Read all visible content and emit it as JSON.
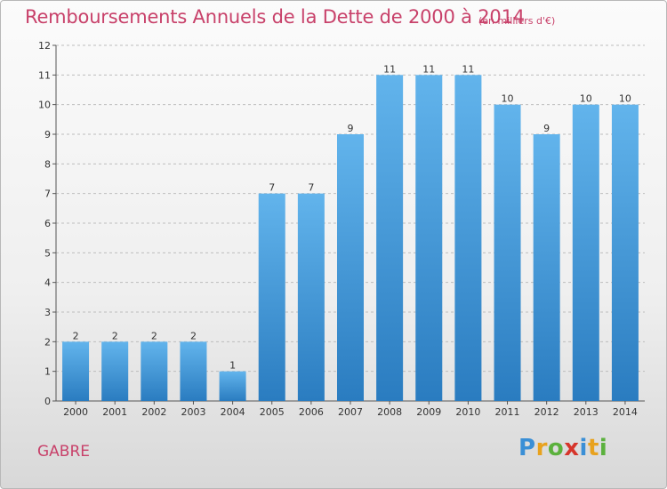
{
  "title": "Remboursements Annuels de la Dette de 2000 à 2014",
  "unit_note": "(en milliers d'€)",
  "commune": "GABRE",
  "logo": {
    "letters": [
      "P",
      "r",
      "o",
      "x",
      "i",
      "t",
      "i"
    ],
    "colors": [
      "#3a8fd6",
      "#e8a21e",
      "#5bb13d",
      "#d6352b",
      "#3a8fd6",
      "#e8a21e",
      "#5bb13d"
    ]
  },
  "colors": {
    "bar_light": "#62b4ec",
    "bar_dark": "#2a7cc0",
    "title": "#c8416a"
  },
  "chart_data": {
    "type": "bar",
    "categories": [
      "2000",
      "2001",
      "2002",
      "2003",
      "2004",
      "2005",
      "2006",
      "2007",
      "2008",
      "2009",
      "2010",
      "2011",
      "2012",
      "2013",
      "2014"
    ],
    "values": [
      2,
      2,
      2,
      2,
      1,
      7,
      7,
      9,
      11,
      11,
      11,
      10,
      9,
      10,
      10
    ],
    "ylim": [
      0,
      12
    ],
    "yticks": [
      0,
      1,
      2,
      3,
      4,
      5,
      6,
      7,
      8,
      9,
      10,
      11,
      12
    ],
    "grid": "horizontal dashed",
    "legend": "none"
  }
}
